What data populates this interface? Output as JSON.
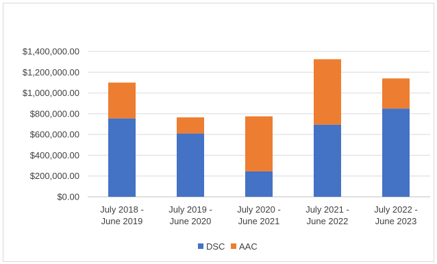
{
  "chart_data": {
    "type": "bar",
    "stacked": true,
    "categories": [
      [
        "July 2018 -",
        "June 2019"
      ],
      [
        "July 2019 -",
        "June 2020"
      ],
      [
        "July 2020 -",
        "June 2021"
      ],
      [
        "July 2021 -",
        "June 2022"
      ],
      [
        "July 2022 -",
        "June 2023"
      ]
    ],
    "series": [
      {
        "name": "DSC",
        "color": "#4472c4",
        "values": [
          755000,
          610000,
          245000,
          695000,
          850000
        ]
      },
      {
        "name": "AAC",
        "color": "#ed7d31",
        "values": [
          345000,
          155000,
          530000,
          630000,
          290000
        ]
      }
    ],
    "ylim": [
      0,
      1400000
    ],
    "yticks": [
      {
        "value": 0,
        "label": "$0.00"
      },
      {
        "value": 200000,
        "label": "$200,000.00"
      },
      {
        "value": 400000,
        "label": "$400,000.00"
      },
      {
        "value": 600000,
        "label": "$600,000.00"
      },
      {
        "value": 800000,
        "label": "$800,000.00"
      },
      {
        "value": 1000000,
        "label": "$1,000,000.00"
      },
      {
        "value": 1200000,
        "label": "$1,200,000.00"
      },
      {
        "value": 1400000,
        "label": "$1,400,000.00"
      }
    ],
    "grid": true,
    "legend": "bottom"
  }
}
